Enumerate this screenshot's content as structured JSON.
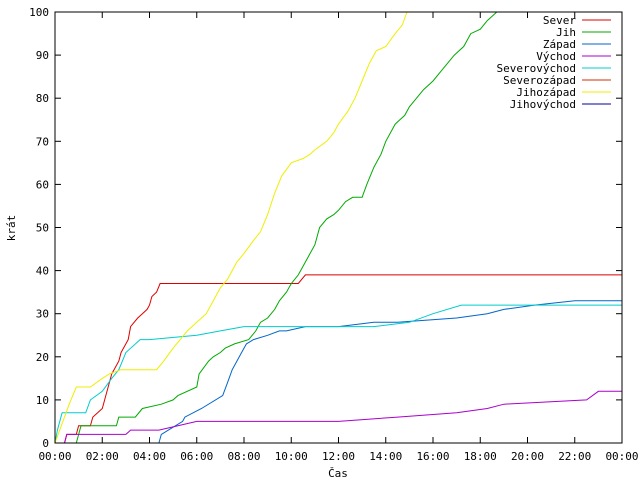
{
  "chart_data": {
    "type": "line",
    "xlabel": "Čas",
    "ylabel": "krát",
    "x_unit": "hours",
    "xlim": [
      0,
      24
    ],
    "ylim": [
      0,
      100
    ],
    "x_ticks": [
      {
        "value": 0,
        "label": "00:00"
      },
      {
        "value": 2,
        "label": "02:00"
      },
      {
        "value": 4,
        "label": "04:00"
      },
      {
        "value": 6,
        "label": "06:00"
      },
      {
        "value": 8,
        "label": "08:00"
      },
      {
        "value": 10,
        "label": "10:00"
      },
      {
        "value": 12,
        "label": "12:00"
      },
      {
        "value": 14,
        "label": "14:00"
      },
      {
        "value": 16,
        "label": "16:00"
      },
      {
        "value": 18,
        "label": "18:00"
      },
      {
        "value": 20,
        "label": "20:00"
      },
      {
        "value": 22,
        "label": "22:00"
      },
      {
        "value": 24,
        "label": "00:00"
      }
    ],
    "y_ticks": [
      0,
      10,
      20,
      30,
      40,
      50,
      60,
      70,
      80,
      90,
      100
    ],
    "grid": false,
    "legend_position": "top-right",
    "series": [
      {
        "name": "Sever",
        "color": "#dd0000",
        "x": [
          0.0,
          0.4,
          0.5,
          0.9,
          1.0,
          1.5,
          1.6,
          2.0,
          2.2,
          2.4,
          2.7,
          2.8,
          3.1,
          3.2,
          3.5,
          3.7,
          3.9,
          4.0,
          4.1,
          4.3,
          4.45,
          10.3,
          10.6,
          24.0
        ],
        "y": [
          0,
          0,
          2,
          2,
          4,
          4,
          6,
          8,
          12,
          16,
          19,
          21,
          24,
          27,
          29,
          30,
          31,
          32,
          34,
          35,
          37,
          37,
          39,
          39
        ]
      },
      {
        "name": "Jih",
        "color": "#00aa00",
        "x": [
          0.0,
          0.9,
          1.1,
          2.6,
          2.7,
          3.4,
          3.7,
          4.5,
          5.0,
          5.2,
          6.0,
          6.1,
          6.5,
          6.7,
          7.0,
          7.2,
          7.6,
          8.2,
          8.5,
          8.7,
          9.0,
          9.3,
          9.5,
          9.8,
          10.0,
          10.3,
          10.6,
          11.0,
          11.2,
          11.5,
          11.8,
          12.0,
          12.3,
          12.6,
          13.0,
          13.2,
          13.5,
          13.8,
          14.0,
          14.4,
          14.6,
          14.8,
          15.0,
          15.3,
          15.6,
          16.0,
          16.3,
          16.6,
          16.9,
          17.3,
          17.6,
          18.0,
          18.3,
          18.5,
          18.7
        ],
        "y": [
          0,
          0,
          4,
          4,
          6,
          6,
          8,
          9,
          10,
          11,
          13,
          16,
          19,
          20,
          21,
          22,
          23,
          24,
          26,
          28,
          29,
          31,
          33,
          35,
          37,
          39,
          42,
          46,
          50,
          52,
          53,
          54,
          56,
          57,
          57,
          60,
          64,
          67,
          70,
          74,
          75,
          76,
          78,
          80,
          82,
          84,
          86,
          88,
          90,
          92,
          95,
          96,
          98,
          99,
          100
        ]
      },
      {
        "name": "Západ",
        "color": "#0066cc",
        "x": [
          0.0,
          4.4,
          4.5,
          4.8,
          5.4,
          5.5,
          6.2,
          7.1,
          7.3,
          7.5,
          7.7,
          7.9,
          8.1,
          8.4,
          9.0,
          9.5,
          9.8,
          10.6,
          11.0,
          12.0,
          13.5,
          14.5,
          17.0,
          18.3,
          19.0,
          20.3,
          22.0,
          24.0
        ],
        "y": [
          0,
          0,
          2,
          3,
          5,
          6,
          8,
          11,
          14,
          17,
          19,
          21,
          23,
          24,
          25,
          26,
          26,
          27,
          27,
          27,
          28,
          28,
          29,
          30,
          31,
          32,
          33,
          33
        ]
      },
      {
        "name": "Východ",
        "color": "#aa00cc",
        "x": [
          0.0,
          0.4,
          0.5,
          3.0,
          3.2,
          4.4,
          5.2,
          6.0,
          12.0,
          14.5,
          17.0,
          18.3,
          19.0,
          22.5,
          23.0,
          24.0
        ],
        "y": [
          0,
          0,
          2,
          2,
          3,
          3,
          4,
          5,
          5,
          6,
          7,
          8,
          9,
          10,
          12,
          12
        ]
      },
      {
        "name": "Severovýchod",
        "color": "#00cccc",
        "x": [
          0.0,
          0.1,
          0.3,
          1.3,
          1.5,
          2.0,
          2.4,
          2.7,
          3.0,
          3.6,
          4.0,
          6.0,
          7.0,
          8.0,
          11.0,
          13.5,
          15.0,
          16.0,
          17.2,
          19.0,
          20.5,
          24.0
        ],
        "y": [
          0,
          3,
          7,
          7,
          10,
          12,
          15,
          17,
          21,
          24,
          24,
          25,
          26,
          27,
          27,
          27,
          28,
          30,
          32,
          32,
          32,
          32
        ]
      },
      {
        "name": "Severozápad",
        "color": "#cc3300",
        "x": [],
        "y": []
      },
      {
        "name": "Jihozápad",
        "color": "#eeee00",
        "x": [
          0.0,
          0.6,
          0.9,
          1.5,
          2.0,
          2.3,
          2.8,
          3.2,
          4.3,
          4.6,
          5.0,
          5.3,
          5.6,
          6.0,
          6.4,
          6.7,
          7.0,
          7.3,
          7.5,
          7.7,
          8.0,
          8.4,
          8.7,
          9.0,
          9.3,
          9.6,
          10.0,
          10.5,
          10.8,
          11.0,
          11.5,
          11.8,
          12.0,
          12.4,
          12.7,
          13.0,
          13.3,
          13.6,
          14.0,
          14.4,
          14.7,
          14.9
        ],
        "y": [
          0,
          9,
          13,
          13,
          15,
          16,
          17,
          17,
          17,
          19,
          22,
          24,
          26,
          28,
          30,
          33,
          36,
          38,
          40,
          42,
          44,
          47,
          49,
          53,
          58,
          62,
          65,
          66,
          67,
          68,
          70,
          72,
          74,
          77,
          80,
          84,
          88,
          91,
          92,
          95,
          97,
          100
        ]
      },
      {
        "name": "Jihovýchod",
        "color": "#000099",
        "x": [],
        "y": []
      }
    ]
  }
}
